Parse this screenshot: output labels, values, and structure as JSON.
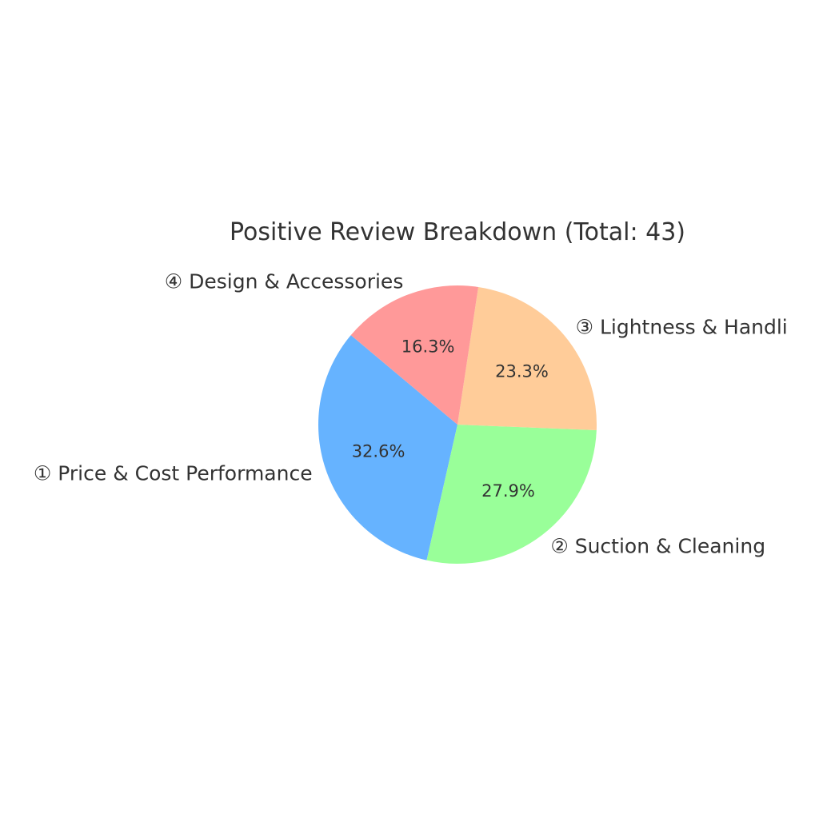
{
  "chart_data": {
    "type": "pie",
    "title": "Positive Review Breakdown (Total: 43)",
    "total": 43,
    "start_angle_deg": 140,
    "direction": "counterclockwise",
    "categories": [
      "① Price & Cost Performance",
      "② Suction & Cleaning",
      "③ Lightness & Handli",
      "④ Design & Accessories"
    ],
    "values": [
      14,
      12,
      10,
      7
    ],
    "percent_labels": [
      "32.6%",
      "27.9%",
      "23.3%",
      "16.3%"
    ],
    "colors": [
      "#66b3ff",
      "#99ff99",
      "#ffcc99",
      "#ff9999"
    ],
    "legend": "none"
  }
}
